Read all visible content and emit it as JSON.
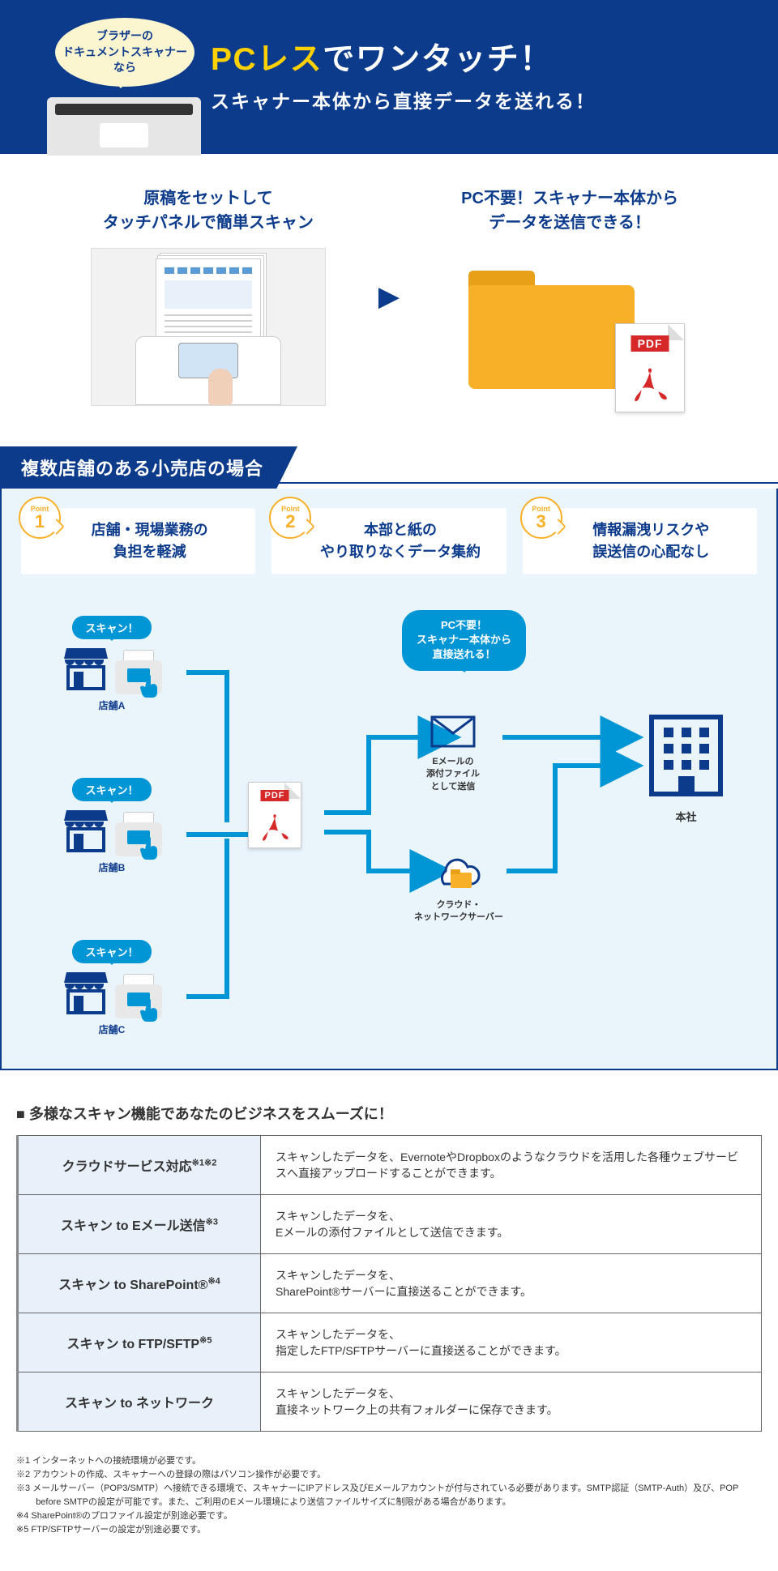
{
  "hero": {
    "bubble": "ブラザーの\nドキュメントスキャナー\nなら",
    "h1_yellow": "PCレス",
    "h1_white": "でワンタッチ！",
    "sub": "スキャナー本体から直接データを送れる！"
  },
  "steps": {
    "left": "原稿をセットして\nタッチパネルで簡単スキャン",
    "right": "PC不要！スキャナー本体から\nデータを送信できる！",
    "pdf_label": "PDF"
  },
  "case_title": "複数店舗のある小売店の場合",
  "points": [
    {
      "plabel": "Point",
      "num": "1",
      "text": "店舗・現場業務の\n負担を軽減"
    },
    {
      "plabel": "Point",
      "num": "2",
      "text": "本部と紙の\nやり取りなくデータ集約"
    },
    {
      "plabel": "Point",
      "num": "3",
      "text": "情報漏洩リスクや\n誤送信の心配なし"
    }
  ],
  "diagram": {
    "scan_label": "スキャン！",
    "stores": [
      "店舗A",
      "店舗B",
      "店舗C"
    ],
    "pc_bubble": "PC不要！\nスキャナー本体から\n直接送れる！",
    "email_label": "Eメールの\n添付ファイル\nとして送信",
    "cloud_label": "クラウド・\nネットワークサーバー",
    "hq_label": "本社",
    "pdf_label": "PDF",
    "colors": {
      "line": "#0096d6",
      "navy": "#0d3b8c",
      "orange": "#f8b028"
    }
  },
  "table": {
    "heading": "多様なスキャン機能であなたのビジネスをスムーズに！",
    "rows": [
      {
        "name": "クラウドサービス対応",
        "sup": "※1※2",
        "desc": "スキャンしたデータを、EvernoteやDropboxのようなクラウドを活用した各種ウェブサービスへ直接アップロードすることができます。"
      },
      {
        "name": "スキャン to Eメール送信",
        "sup": "※3",
        "desc": "スキャンしたデータを、\nEメールの添付ファイルとして送信できます。"
      },
      {
        "name": "スキャン to SharePoint®",
        "sup": "※4",
        "desc": "スキャンしたデータを、\nSharePoint®サーバーに直接送ることができます。"
      },
      {
        "name": "スキャン to FTP/SFTP",
        "sup": "※5",
        "desc": "スキャンしたデータを、\n指定したFTP/SFTPサーバーに直接送ることができます。"
      },
      {
        "name": "スキャン to ネットワーク",
        "sup": "",
        "desc": "スキャンしたデータを、\n直接ネットワーク上の共有フォルダーに保存できます。"
      }
    ]
  },
  "notes": [
    "※1 インターネットへの接続環境が必要です。",
    "※2 アカウントの作成、スキャナーへの登録の際はパソコン操作が必要です。",
    "※3 メールサーバー（POP3/SMTP）へ接続できる環境で、スキャナーにIPアドレス及びEメールアカウントが付与されている必要があります。SMTP認証（SMTP-Auth）及び、POP before SMTPの設定が可能です。また、ご利用のEメール環境により送信ファイルサイズに制限がある場合があります。",
    "※4 SharePoint®のプロファイル設定が別途必要です。",
    "※5 FTP/SFTPサーバーの設定が別途必要です。"
  ]
}
